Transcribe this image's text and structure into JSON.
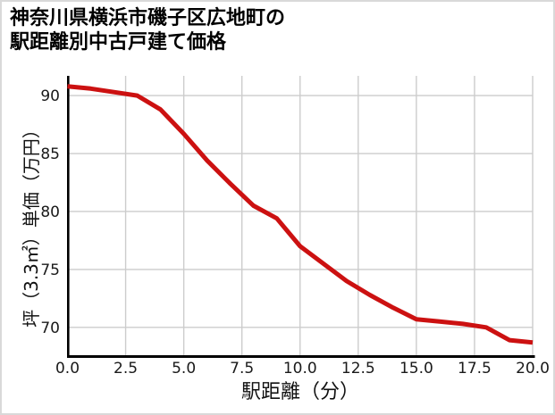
{
  "title": {
    "line1": "神奈川県横浜市磯子区広地町の",
    "line2": "駅距離別中古戸建て価格"
  },
  "chart_data": {
    "type": "line",
    "title": "神奈川県横浜市磯子区広地町の駅距離別中古戸建て価格",
    "xlabel": "駅距離（分）",
    "ylabel": "坪（3.3㎡）単価（万円）",
    "x": [
      0,
      1,
      2,
      3,
      4,
      5,
      6,
      7,
      8,
      9,
      10,
      11,
      12,
      13,
      14,
      15,
      16,
      17,
      18,
      19,
      20
    ],
    "values": [
      90.8,
      90.6,
      90.3,
      90.0,
      88.8,
      86.7,
      84.4,
      82.4,
      80.5,
      79.4,
      77.0,
      75.5,
      74.0,
      72.8,
      71.7,
      70.7,
      70.5,
      70.3,
      70.0,
      68.9,
      68.7
    ],
    "xlim": [
      0,
      20
    ],
    "ylim": [
      67.6,
      91.7
    ],
    "xticks": [
      0,
      2.5,
      5,
      7.5,
      10,
      12.5,
      15,
      17.5,
      20
    ],
    "xtick_labels": [
      "0.0",
      "2.5",
      "5.0",
      "7.5",
      "10.0",
      "12.5",
      "15.0",
      "17.5",
      "20.0"
    ],
    "yticks": [
      70,
      75,
      80,
      85,
      90
    ],
    "ytick_labels": [
      "70",
      "75",
      "80",
      "85",
      "90"
    ],
    "grid": true,
    "legend": "none"
  },
  "colors": {
    "line": "#cc1111",
    "grid": "#cccccc",
    "axis": "#000000",
    "text": "#000000",
    "frame_border": "#d9d9d9",
    "background": "#ffffff"
  }
}
